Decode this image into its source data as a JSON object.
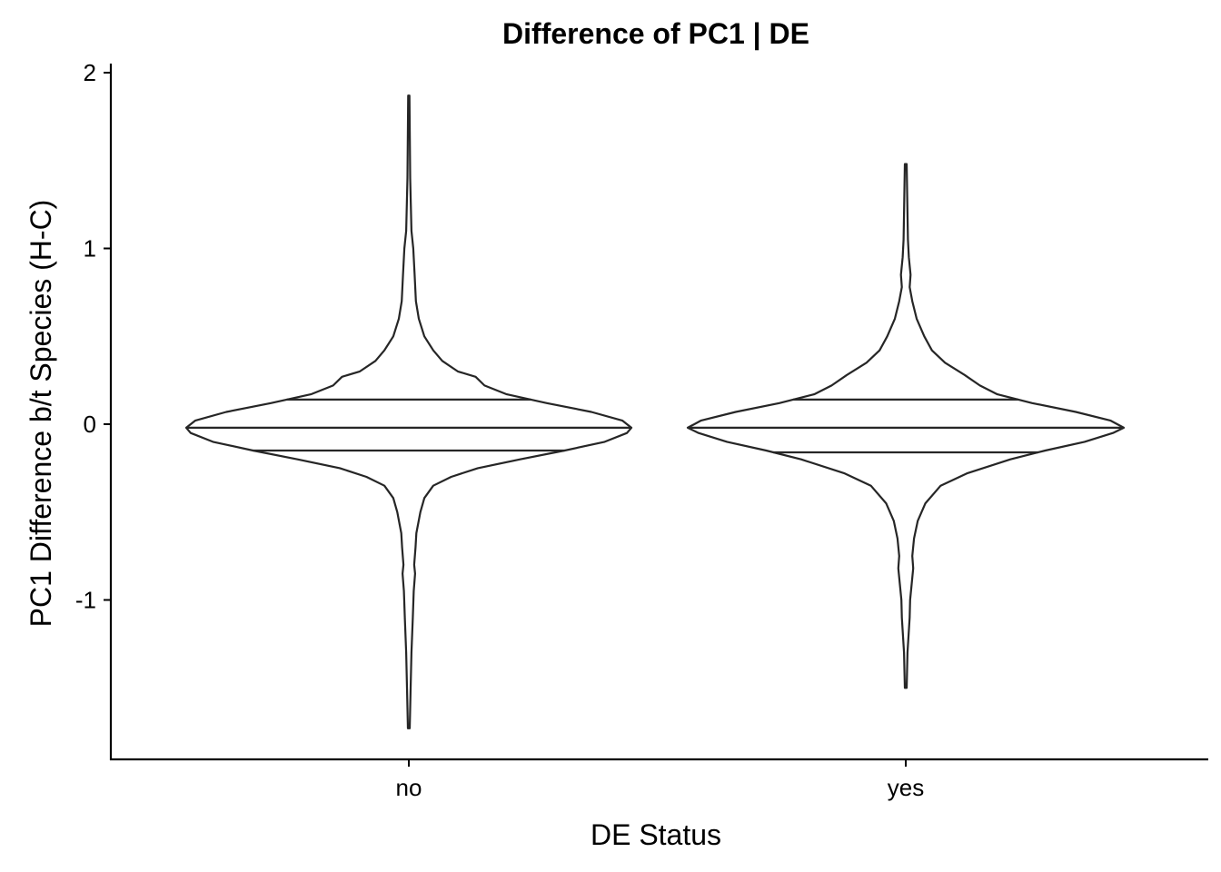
{
  "chart_data": {
    "type": "violin",
    "title": "Difference of PC1 | DE",
    "xlabel": "DE Status",
    "ylabel": "PC1 Difference b/t Species (H-C)",
    "categories": [
      "no",
      "yes"
    ],
    "yticks": [
      "2",
      "1",
      "0",
      "-1"
    ],
    "ytick_values": [
      2,
      1,
      0,
      -1
    ],
    "ylim": [
      -1.9,
      2.05
    ],
    "grid": false,
    "legend": "none",
    "line_color": "#262626",
    "violins": [
      {
        "category": "no",
        "min": -1.73,
        "max": 1.87,
        "quantiles": [
          -0.15,
          -0.02,
          0.14
        ],
        "density": [
          [
            -1.73,
            0.004
          ],
          [
            -1.5,
            0.008
          ],
          [
            -1.3,
            0.012
          ],
          [
            -1.1,
            0.018
          ],
          [
            -0.95,
            0.022
          ],
          [
            -0.85,
            0.028
          ],
          [
            -0.8,
            0.024
          ],
          [
            -0.7,
            0.03
          ],
          [
            -0.62,
            0.034
          ],
          [
            -0.5,
            0.052
          ],
          [
            -0.42,
            0.07
          ],
          [
            -0.35,
            0.11
          ],
          [
            -0.3,
            0.19
          ],
          [
            -0.25,
            0.31
          ],
          [
            -0.2,
            0.5
          ],
          [
            -0.15,
            0.7
          ],
          [
            -0.1,
            0.88
          ],
          [
            -0.05,
            0.98
          ],
          [
            -0.02,
            1.0
          ],
          [
            0.02,
            0.96
          ],
          [
            0.07,
            0.82
          ],
          [
            0.12,
            0.62
          ],
          [
            0.17,
            0.44
          ],
          [
            0.22,
            0.34
          ],
          [
            0.27,
            0.3
          ],
          [
            0.3,
            0.22
          ],
          [
            0.36,
            0.15
          ],
          [
            0.42,
            0.11
          ],
          [
            0.5,
            0.07
          ],
          [
            0.6,
            0.045
          ],
          [
            0.7,
            0.032
          ],
          [
            0.85,
            0.026
          ],
          [
            1.0,
            0.02
          ],
          [
            1.1,
            0.012
          ],
          [
            1.4,
            0.006
          ],
          [
            1.87,
            0.003
          ]
        ]
      },
      {
        "category": "yes",
        "min": -1.5,
        "max": 1.48,
        "quantiles": [
          -0.16,
          -0.02,
          0.14
        ],
        "density": [
          [
            -1.5,
            0.004
          ],
          [
            -1.3,
            0.008
          ],
          [
            -1.1,
            0.018
          ],
          [
            -1.0,
            0.02
          ],
          [
            -0.9,
            0.028
          ],
          [
            -0.82,
            0.034
          ],
          [
            -0.75,
            0.03
          ],
          [
            -0.65,
            0.038
          ],
          [
            -0.55,
            0.055
          ],
          [
            -0.45,
            0.09
          ],
          [
            -0.35,
            0.16
          ],
          [
            -0.28,
            0.28
          ],
          [
            -0.2,
            0.48
          ],
          [
            -0.15,
            0.64
          ],
          [
            -0.1,
            0.82
          ],
          [
            -0.05,
            0.95
          ],
          [
            -0.02,
            1.0
          ],
          [
            0.02,
            0.94
          ],
          [
            0.07,
            0.78
          ],
          [
            0.12,
            0.58
          ],
          [
            0.17,
            0.42
          ],
          [
            0.22,
            0.34
          ],
          [
            0.28,
            0.27
          ],
          [
            0.35,
            0.18
          ],
          [
            0.42,
            0.12
          ],
          [
            0.5,
            0.085
          ],
          [
            0.6,
            0.05
          ],
          [
            0.7,
            0.03
          ],
          [
            0.78,
            0.018
          ],
          [
            0.85,
            0.022
          ],
          [
            0.95,
            0.014
          ],
          [
            1.05,
            0.01
          ],
          [
            1.2,
            0.008
          ],
          [
            1.48,
            0.004
          ]
        ]
      }
    ]
  }
}
